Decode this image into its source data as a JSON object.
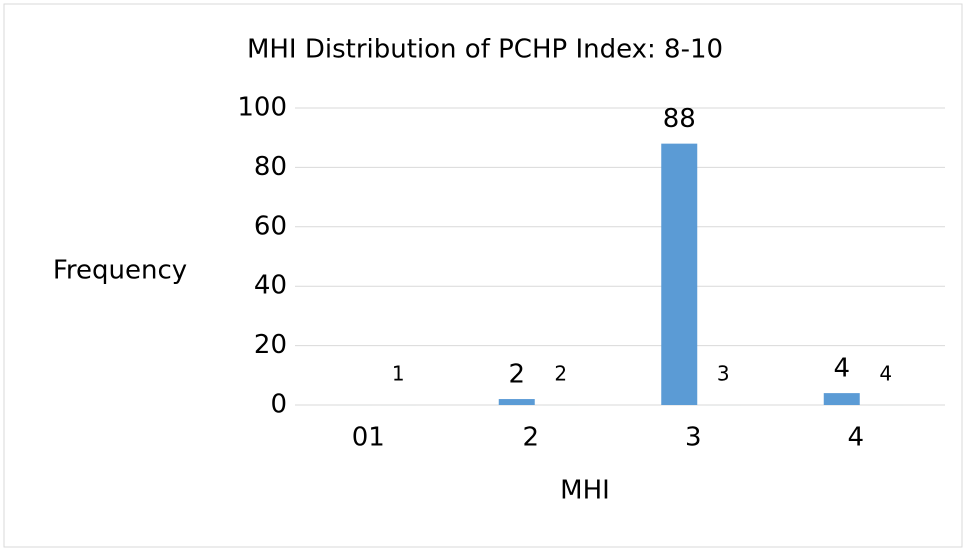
{
  "chart_data": {
    "type": "bar",
    "title": "MHI Distribution of PCHP Index: 8-10",
    "x_label": "MHI",
    "y_label": "Frequency",
    "categories": [
      "01",
      "2",
      "3",
      "4"
    ],
    "series": [
      {
        "color": "#5b9bd5",
        "values": [
          0,
          2,
          88,
          4
        ]
      },
      {
        "color": "#5b9bd5",
        "values": [
          0,
          0,
          0,
          0
        ],
        "data_labels": [
          "1",
          "2",
          "3",
          "4"
        ]
      }
    ],
    "ylim": [
      0,
      100
    ],
    "yticks": [
      0,
      20,
      40,
      60,
      80,
      100
    ],
    "grid": true
  }
}
